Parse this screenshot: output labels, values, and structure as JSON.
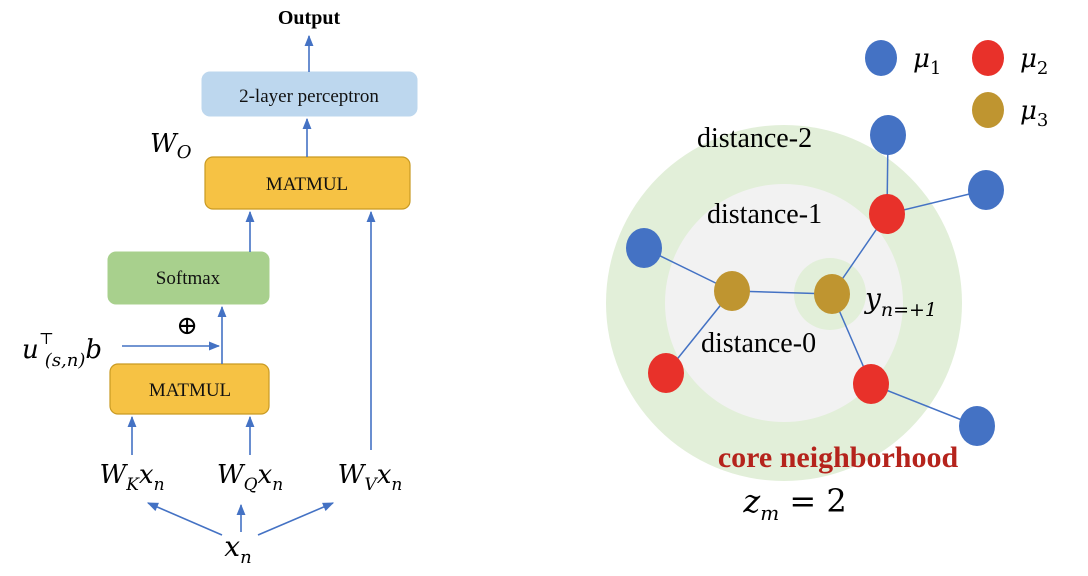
{
  "attention": {
    "output_label": "Output",
    "perceptron_label": "2-layer perceptron",
    "wo_label": {
      "base": "W",
      "sub": "O"
    },
    "matmul_top_label": "MATMUL",
    "softmax_label": "Softmax",
    "plus_symbol": "⊕",
    "bias_label": {
      "base": "u",
      "sup": "⊤",
      "sub": "(s,n)",
      "tail": "b"
    },
    "matmul_bottom_label": "MATMUL",
    "inputs": [
      {
        "base": "W",
        "sub": "K",
        "tail": "x",
        "tail_sub": "n"
      },
      {
        "base": "W",
        "sub": "Q",
        "tail": "x",
        "tail_sub": "n"
      },
      {
        "base": "W",
        "sub": "V",
        "tail": "x",
        "tail_sub": "n"
      }
    ],
    "source": {
      "base": "x",
      "sub": "n"
    },
    "colors": {
      "box_orange": "#f6c244",
      "box_green": "#a8d08d",
      "box_blue": "#bdd7ee",
      "arrow": "#4472c4"
    }
  },
  "neighborhood": {
    "legend": [
      {
        "symbol": "μ",
        "sub": "1",
        "color": "#4472c4"
      },
      {
        "symbol": "μ",
        "sub": "2",
        "color": "#e8312a"
      },
      {
        "symbol": "μ",
        "sub": "3",
        "color": "#bf9530"
      }
    ],
    "distance_labels": [
      "distance-2",
      "distance-1",
      "distance-0"
    ],
    "center_node_label": {
      "base": "y",
      "sub": "n=+1"
    },
    "core_label": "core neighborhood",
    "zm_label": {
      "base": "z",
      "sub": "m",
      "tail": " = 2"
    },
    "colors": {
      "outer_ring": "#e2efd9",
      "middle_ring": "#f2f2f2",
      "core_text": "#b5231c",
      "edge": "#4472c4"
    }
  }
}
